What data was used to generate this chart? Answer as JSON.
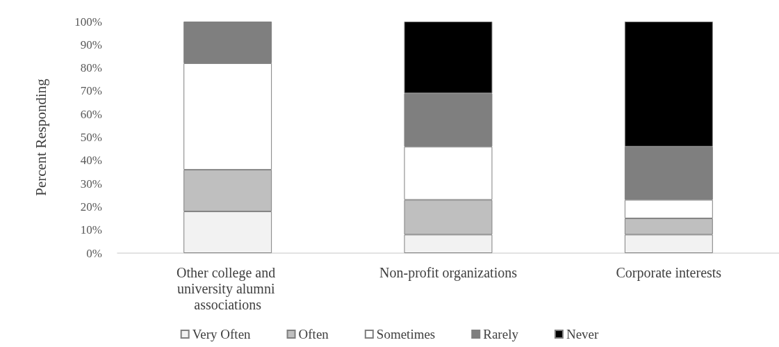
{
  "chart_data": {
    "type": "bar",
    "ylabel": "Percent Responding",
    "categories": [
      "Other college and university alumni associations",
      "Non-profit organizations",
      "Corporate interests"
    ],
    "stacked": true,
    "series": [
      {
        "name": "Very Often",
        "color": "#f2f2f2",
        "values": [
          18,
          8,
          8
        ]
      },
      {
        "name": "Often",
        "color": "#bfbfbf",
        "values": [
          18,
          15,
          7
        ]
      },
      {
        "name": "Sometimes",
        "color": "#ffffff",
        "values": [
          46,
          23,
          8
        ]
      },
      {
        "name": "Rarely",
        "color": "#7f7f7f",
        "values": [
          18,
          23,
          23
        ]
      },
      {
        "name": "Never",
        "color": "#000000",
        "values": [
          null,
          31,
          54
        ]
      }
    ],
    "ylim": [
      0,
      100
    ],
    "yticks": [
      {
        "value": 0,
        "label": "0%"
      },
      {
        "value": 10,
        "label": "10%"
      },
      {
        "value": 20,
        "label": "20%"
      },
      {
        "value": 30,
        "label": "30%"
      },
      {
        "value": 40,
        "label": "40%"
      },
      {
        "value": 50,
        "label": "50%"
      },
      {
        "value": 60,
        "label": "60%"
      },
      {
        "value": 70,
        "label": "70%"
      },
      {
        "value": 80,
        "label": "80%"
      },
      {
        "value": 90,
        "label": "90%"
      },
      {
        "value": 100,
        "label": "100%"
      }
    ],
    "legend": "bottom"
  }
}
